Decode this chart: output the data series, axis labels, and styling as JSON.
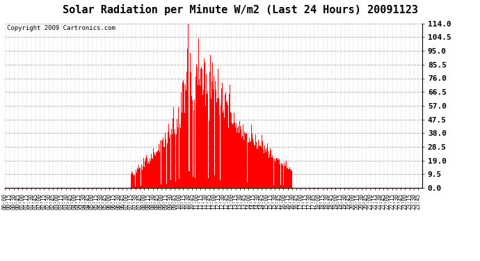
{
  "title": "Solar Radiation per Minute W/m2 (Last 24 Hours) 20091123",
  "copyright": "Copyright 2009 Cartronics.com",
  "background_color": "#ffffff",
  "plot_bg_color": "#ffffff",
  "bar_color": "#ff0000",
  "grid_color": "#aaaaaa",
  "yticks": [
    0.0,
    9.5,
    19.0,
    28.5,
    38.0,
    47.5,
    57.0,
    66.5,
    76.0,
    85.5,
    95.0,
    104.5,
    114.0
  ],
  "ymax": 114.0,
  "ymin": 0.0,
  "title_fontsize": 11,
  "copyright_fontsize": 6.5,
  "ytick_fontsize": 8,
  "xtick_fontsize": 5.5,
  "n_minutes": 1440
}
